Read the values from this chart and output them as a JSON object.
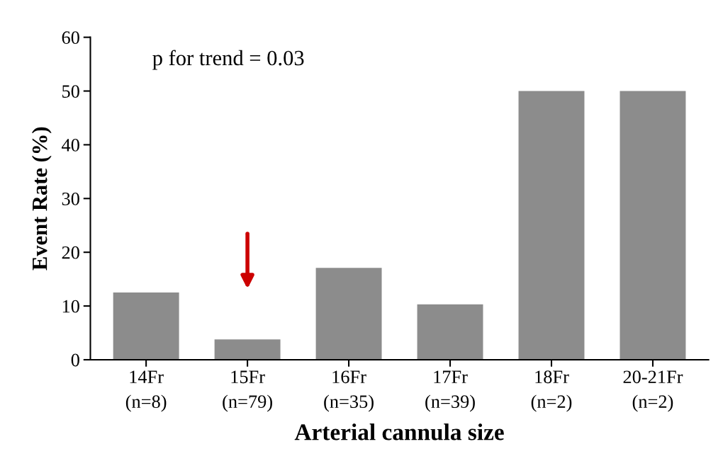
{
  "chart_data": {
    "type": "bar",
    "xlabel": "Arterial cannula size",
    "ylabel": "Event Rate (%)",
    "categories": [
      "14Fr\n(n=8)",
      "15Fr\n(n=79)",
      "16Fr\n(n=35)",
      "17Fr\n(n=39)",
      "18Fr\n(n=2)",
      "20-21Fr\n(n=2)"
    ],
    "values": [
      12.5,
      3.8,
      17.1,
      10.3,
      50,
      50
    ],
    "color": "#8c8c8c",
    "ylim": [
      0,
      60
    ],
    "yticks": [
      0,
      10,
      20,
      30,
      40,
      50,
      60
    ],
    "grid": false,
    "annotations": [
      "p for trend = 0.03"
    ]
  }
}
